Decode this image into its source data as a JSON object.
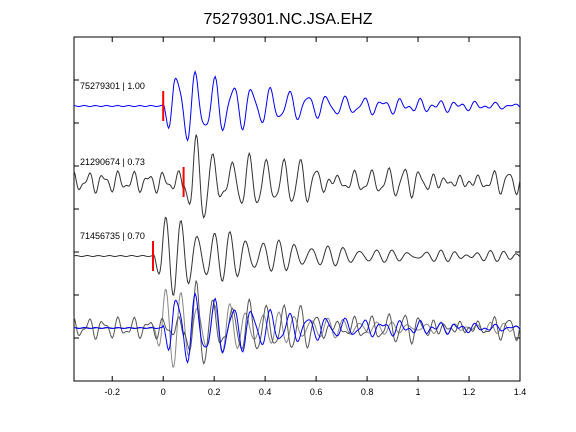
{
  "chart_data": {
    "type": "line",
    "title": "75279301.NC.JSA.EHZ",
    "xlabel": "",
    "ylabel": "",
    "xlim": [
      -0.35,
      1.4
    ],
    "x_ticks": [
      -0.2,
      0,
      0.2,
      0.4,
      0.6,
      0.8,
      1.0,
      1.2,
      1.4
    ],
    "x_tick_labels": [
      "-0.2",
      "0",
      "0.2",
      "0.4",
      "0.6",
      "0.8",
      "1",
      "1.2",
      "1.4"
    ],
    "y_ticks_count": 9,
    "grid": false,
    "traces": [
      {
        "label": "75279301 | 1.00",
        "id": "75279301",
        "correlation": 1.0,
        "pick_time": 0.0,
        "color": "#0000ff",
        "seed": 3
      },
      {
        "label": "21290674 | 0.73",
        "id": "21290674",
        "correlation": 0.73,
        "pick_time": 0.08,
        "color": "#333333",
        "seed": 7
      },
      {
        "label": "71456735 | 0.70",
        "id": "71456735",
        "correlation": 0.7,
        "pick_time": -0.04,
        "color": "#333333",
        "seed": 11
      }
    ],
    "overlay": {
      "description_shown": false,
      "colors": [
        "#0000ff",
        "#555555",
        "#888888"
      ]
    },
    "pick_color": "#ff0000"
  }
}
